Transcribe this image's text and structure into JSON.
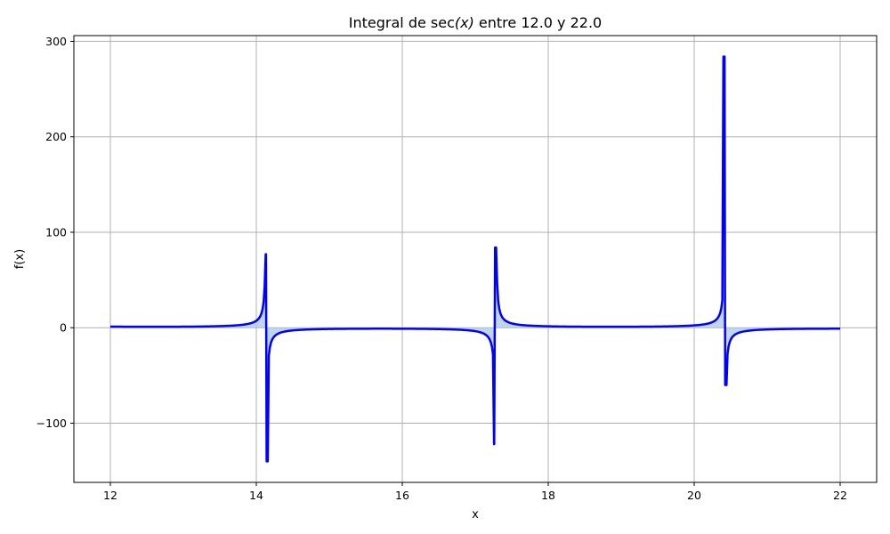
{
  "chart_data": {
    "type": "line",
    "title_parts": {
      "pre": "Integral de sec",
      "mid": "(x)",
      "post": " entre 12.0 y 22.0"
    },
    "xlabel": "x",
    "ylabel": "f(x)",
    "xlim": [
      11.5,
      22.5
    ],
    "ylim": [
      -162,
      306
    ],
    "x_ticks": [
      {
        "value": 12,
        "label": "12"
      },
      {
        "value": 14,
        "label": "14"
      },
      {
        "value": 16,
        "label": "16"
      },
      {
        "value": 18,
        "label": "18"
      },
      {
        "value": 20,
        "label": "20"
      },
      {
        "value": 22,
        "label": "22"
      }
    ],
    "y_ticks": [
      {
        "value": -100,
        "label": "−100"
      },
      {
        "value": 0,
        "label": "0"
      },
      {
        "value": 100,
        "label": "100"
      },
      {
        "value": 200,
        "label": "200"
      },
      {
        "value": 300,
        "label": "300"
      }
    ],
    "grid": true,
    "function": "sec(x)",
    "x_range": [
      12.0,
      22.0
    ],
    "peaks": [
      {
        "x": 14.13,
        "y": 77
      },
      {
        "x": 14.15,
        "y": -140
      },
      {
        "x": 17.26,
        "y": -122
      },
      {
        "x": 17.28,
        "y": 84
      },
      {
        "x": 20.41,
        "y": 284
      },
      {
        "x": 20.43,
        "y": -60
      }
    ],
    "line_color": "#0000ff",
    "fill_color": "#aac8e8"
  }
}
